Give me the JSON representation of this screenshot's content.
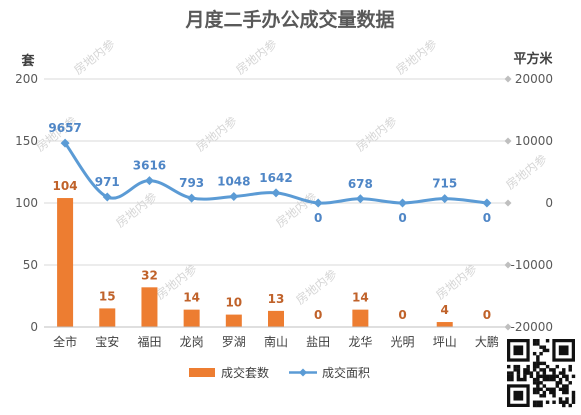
{
  "title": "月度二手办公成交量数据",
  "colors": {
    "bar": "#ed7d31",
    "line": "#5b9bd5",
    "grid": "#d9d9d9"
  },
  "watermark_text": "房地内参",
  "chart_data": {
    "type": "bar+line",
    "title": "月度二手办公成交量数据",
    "categories": [
      "全市",
      "宝安",
      "福田",
      "龙岗",
      "罗湖",
      "南山",
      "盐田",
      "龙华",
      "光明",
      "坪山",
      "大鹏"
    ],
    "y_left": {
      "label": "套",
      "ticks": [
        "0",
        "50",
        "100",
        "150",
        "200"
      ],
      "range": [
        0,
        200
      ]
    },
    "y_right": {
      "label": "平方米",
      "ticks": [
        "-20000",
        "-10000",
        "0",
        "10000",
        "20000"
      ],
      "range": [
        -20000,
        20000
      ]
    },
    "series": [
      {
        "name": "成交套数",
        "type": "bar",
        "axis": "left",
        "values": [
          104,
          15,
          32,
          14,
          10,
          13,
          0,
          14,
          0,
          4,
          0
        ],
        "labels": [
          "104",
          "15",
          "32",
          "14",
          "10",
          "13",
          "0",
          "14",
          "0",
          "4",
          "0"
        ]
      },
      {
        "name": "成交面积",
        "type": "line",
        "axis": "right",
        "values": [
          9657,
          971,
          3616,
          793,
          1048,
          1642,
          0,
          678,
          0,
          715,
          0
        ],
        "labels": [
          "9657",
          "971",
          "3616",
          "793",
          "1048",
          "1642",
          "0",
          "678",
          "0",
          "715",
          "0"
        ]
      }
    ],
    "legend": "bottom",
    "grid": true
  }
}
